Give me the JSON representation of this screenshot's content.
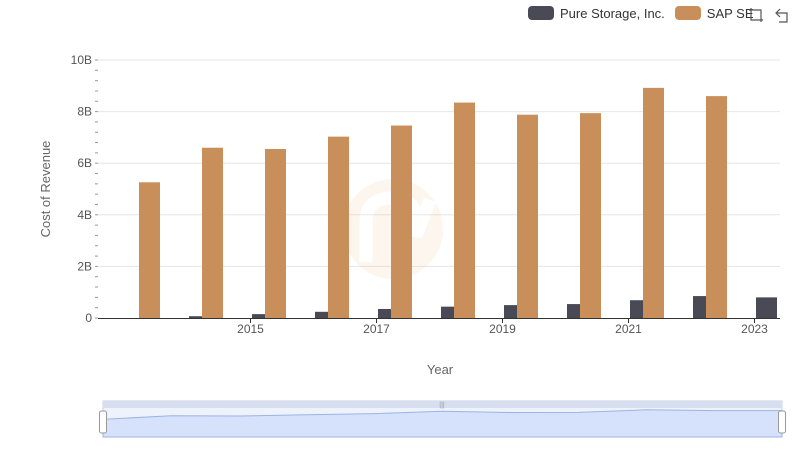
{
  "legend": {
    "items": [
      {
        "name": "Pure Storage, Inc.",
        "color": "#4a4a57"
      },
      {
        "name": "SAP SE",
        "color": "#c98f5a"
      }
    ]
  },
  "toolbar": {
    "restore_icon": "restore-icon",
    "zoom_icon": "zoom-icon"
  },
  "chart_data": {
    "type": "bar",
    "title": "",
    "xlabel": "Year",
    "ylabel": "Cost of Revenue",
    "ylim": [
      0,
      10000000000
    ],
    "yticks": [
      "0",
      "2B",
      "4B",
      "6B",
      "8B",
      "10B"
    ],
    "categories": [
      "2014",
      "2015",
      "2016",
      "2017",
      "2018",
      "2019",
      "2020",
      "2021",
      "2022",
      "2023",
      "2024"
    ],
    "xtick_labels": [
      "2015",
      "2017",
      "2019",
      "2021",
      "2023"
    ],
    "series": [
      {
        "name": "Pure Storage, Inc.",
        "color": "#4a4a57",
        "values": [
          null,
          70000000,
          150000000,
          240000000,
          350000000,
          440000000,
          500000000,
          540000000,
          690000000,
          850000000,
          800000000
        ]
      },
      {
        "name": "SAP SE",
        "color": "#c98f5a",
        "values": [
          5260000000,
          6600000000,
          6550000000,
          7030000000,
          7460000000,
          8350000000,
          7880000000,
          7940000000,
          8920000000,
          8600000000,
          null
        ]
      }
    ]
  }
}
